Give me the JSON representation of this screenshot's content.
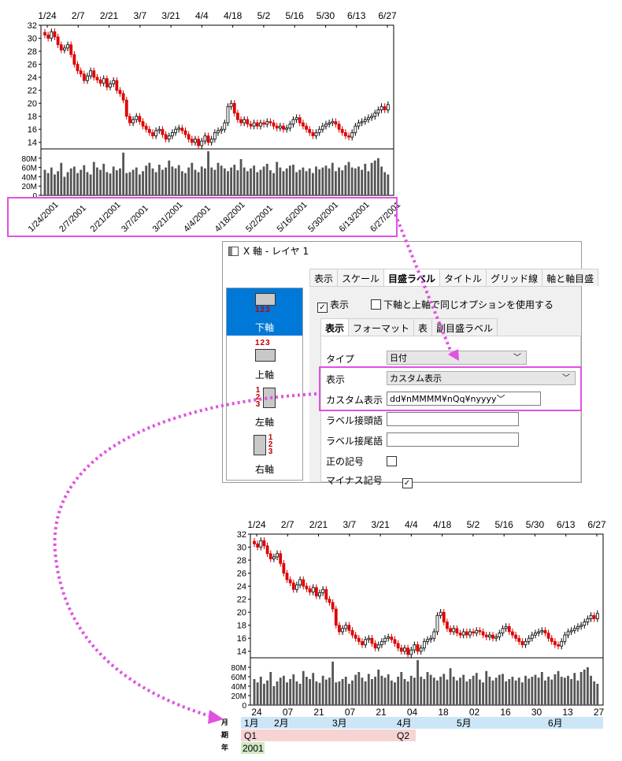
{
  "chart1": {
    "month_labels": [
      "1/24",
      "2/7",
      "2/21",
      "3/7",
      "3/21",
      "4/4",
      "4/18",
      "5/2",
      "5/16",
      "5/30",
      "6/13",
      "6/27"
    ],
    "price_ticks": [
      "32",
      "30",
      "28",
      "26",
      "24",
      "22",
      "20",
      "18",
      "16",
      "14"
    ],
    "vol_ticks": [
      "80M",
      "60M",
      "40M",
      "20M",
      "0"
    ],
    "date_labels": [
      "1/24/2001",
      "2/7/2001",
      "2/21/2001",
      "3/7/2001",
      "3/21/2001",
      "4/4/2001",
      "4/18/2001",
      "5/2/2001",
      "5/16/2001",
      "5/30/2001",
      "6/13/2001",
      "6/27/2001"
    ]
  },
  "dialog": {
    "title": "X 軸 - レイヤ 1",
    "side_items": [
      "下軸",
      "上軸",
      "左軸",
      "右軸"
    ],
    "side_numbers": "123",
    "tabs": [
      "表示",
      "スケール",
      "目盛ラベル",
      "タイトル",
      "グリッド線",
      "軸と軸目盛"
    ],
    "show_label": "表示",
    "same_option_label": "下軸と上軸で同じオプションを使用する",
    "subtabs": [
      "表示",
      "フォーマット",
      "表",
      "副目盛ラベル"
    ],
    "fields": {
      "type_label": "タイプ",
      "type_value": "日付",
      "display_label": "表示",
      "display_value": "カスタム表示",
      "custom_label": "カスタム表示",
      "custom_value": "dd¥nMMMM¥nQq¥nyyyy",
      "prefix_label": "ラベル接頭語",
      "suffix_label": "ラベル接尾語",
      "plus_label": "正の記号",
      "minus_label": "マイナス記号"
    }
  },
  "chart2": {
    "month_labels": [
      "1/24",
      "2/7",
      "2/21",
      "3/7",
      "3/21",
      "4/4",
      "4/18",
      "5/2",
      "5/16",
      "5/30",
      "6/13",
      "6/27"
    ],
    "price_ticks": [
      "32",
      "30",
      "28",
      "26",
      "24",
      "22",
      "20",
      "18",
      "16",
      "14"
    ],
    "vol_ticks": [
      "80M",
      "60M",
      "40M",
      "20M",
      "0"
    ],
    "day_labels": [
      "24",
      "07",
      "21",
      "07",
      "21",
      "04",
      "18",
      "02",
      "16",
      "30",
      "13",
      "27"
    ],
    "row_labels": [
      "月",
      "四半期",
      "年"
    ],
    "months": [
      "1月",
      "2月",
      "3月",
      "4月",
      "5月",
      "6月"
    ],
    "quarters": [
      "Q1",
      "Q2"
    ],
    "year": "2001"
  },
  "chart_data": [
    {
      "type": "candlestick",
      "ylim": [
        13,
        32
      ],
      "close": [
        30.5,
        30.0,
        31.0,
        30.2,
        29.0,
        28.2,
        28.5,
        29.0,
        27.5,
        26.0,
        25.0,
        24.5,
        23.5,
        24.2,
        25.0,
        24.0,
        23.6,
        23.1,
        23.8,
        22.5,
        23.0,
        23.5,
        22.0,
        21.5,
        20.5,
        18.0,
        17.0,
        17.5,
        18.0,
        17.2,
        16.5,
        16.0,
        15.5,
        15.0,
        15.8,
        16.0,
        15.2,
        14.5,
        15.0,
        15.5,
        16.0,
        16.2,
        15.8,
        15.2,
        14.5,
        14.0,
        14.5,
        13.5,
        14.2,
        15.0,
        14.0,
        14.5,
        15.5,
        15.8,
        16.0,
        17.0,
        19.5,
        20.0,
        18.5,
        17.5,
        17.0,
        17.5,
        16.8,
        16.5,
        17.0,
        16.5,
        17.0,
        16.8,
        17.2,
        17.0,
        16.5,
        16.2,
        16.5,
        16.0,
        16.2,
        16.8,
        17.5,
        17.8,
        17.0,
        16.5,
        16.0,
        15.5,
        15.0,
        15.5,
        16.0,
        16.5,
        16.8,
        17.0,
        17.2,
        16.8,
        16.0,
        15.5,
        15.0,
        14.8,
        15.5,
        16.5,
        17.0,
        17.2,
        17.5,
        17.8,
        18.0,
        18.5,
        19.0,
        19.5,
        19.0,
        19.8
      ],
      "volume_M": [
        55,
        48,
        60,
        45,
        52,
        70,
        40,
        50,
        58,
        62,
        48,
        55,
        65,
        50,
        45,
        72,
        60,
        55,
        68,
        50,
        47,
        62,
        54,
        58,
        92,
        48,
        50,
        55,
        60,
        45,
        52,
        64,
        70,
        58,
        50,
        66,
        55,
        60,
        75,
        62,
        58,
        65,
        52,
        48,
        60,
        70,
        55,
        50,
        62,
        58,
        95,
        60,
        55,
        70,
        64,
        58,
        52,
        60,
        66,
        54,
        78,
        60,
        52,
        58,
        64,
        50,
        55,
        62,
        68,
        54,
        48,
        72,
        60,
        52,
        58,
        64,
        66,
        50,
        55,
        60,
        52,
        58,
        48,
        62,
        56,
        60,
        64,
        58,
        70,
        52,
        60,
        54,
        65,
        72,
        60,
        58,
        62,
        55,
        68,
        52,
        70,
        75,
        80,
        62,
        50,
        45
      ]
    }
  ]
}
